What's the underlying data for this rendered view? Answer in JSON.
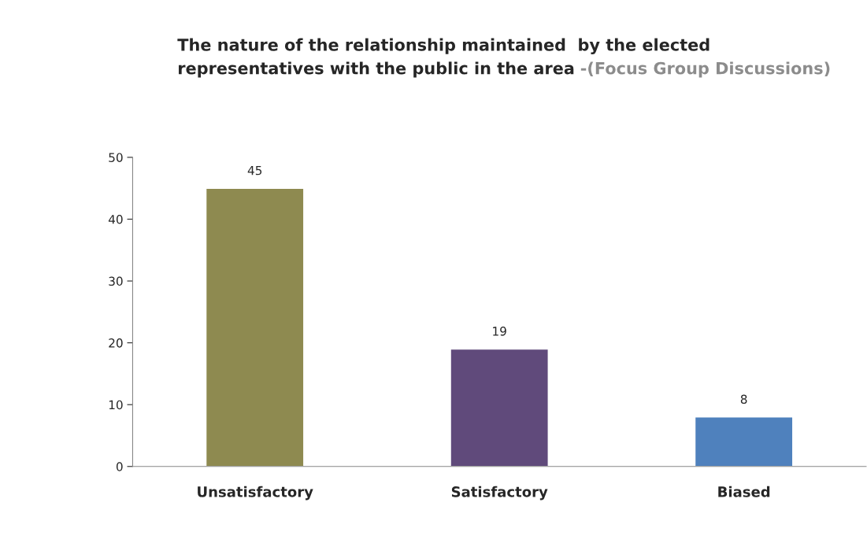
{
  "chart_data": {
    "type": "bar",
    "title": "The nature of the relationship maintained  by the elected\nrepresentatives with the public in the area",
    "subtitle": "-(Focus Group Discussions)",
    "categories": [
      "Unsatisfactory",
      "Satisfactory",
      "Biased"
    ],
    "values": [
      45,
      19,
      8
    ],
    "colors": [
      "#8e8a50",
      "#604a7b",
      "#4f81bd"
    ],
    "ylim": [
      0,
      50
    ],
    "yticks": [
      0,
      10,
      20,
      30,
      40,
      50
    ],
    "grid": false,
    "data_labels": true
  }
}
